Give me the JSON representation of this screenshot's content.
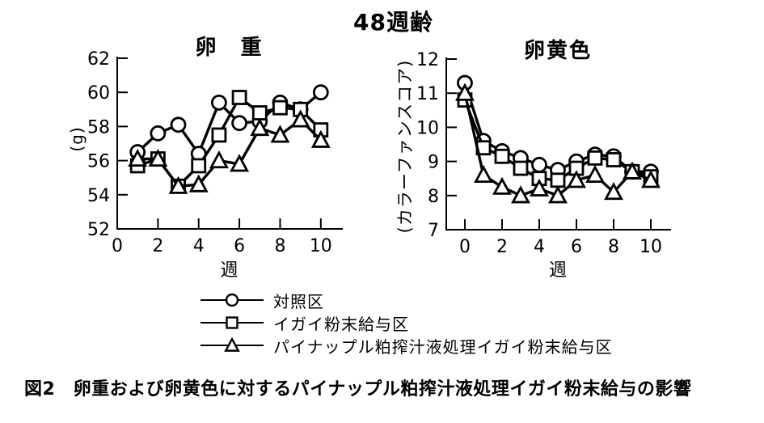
{
  "title": "48週齢",
  "caption": "図2　卵重および卵黄色に対するパイナップル粕搾汁液処理イガイ粉末給与の影響",
  "colors": {
    "ink": "#000000",
    "background": "#ffffff"
  },
  "legend": {
    "position": "bottom",
    "items": [
      {
        "id": "control",
        "marker": "circle",
        "label": "対照区"
      },
      {
        "id": "mussel-powder",
        "marker": "square",
        "label": "イガイ粉末給与区"
      },
      {
        "id": "pineapple-mussel-powder",
        "marker": "triangle",
        "label": "パイナップル粕搾汁液処理イガイ粉末給与区"
      }
    ]
  },
  "chart_data": [
    {
      "type": "line",
      "title": "卵　重",
      "ylabel": "(g)",
      "xlabel": "週",
      "grid": false,
      "x": [
        1,
        2,
        3,
        4,
        5,
        6,
        7,
        8,
        9,
        10
      ],
      "xticks": [
        0,
        2,
        4,
        6,
        8,
        10
      ],
      "yticks": [
        52,
        54,
        56,
        58,
        60,
        62
      ],
      "xlim": [
        0,
        11
      ],
      "ylim": [
        52,
        62
      ],
      "series": [
        {
          "id": "control",
          "name": "対照区",
          "marker": "circle",
          "values": [
            56.5,
            57.6,
            58.1,
            56.4,
            59.4,
            58.2,
            58.3,
            59.4,
            59.0,
            60.0
          ]
        },
        {
          "id": "mussel-powder",
          "name": "イガイ粉末給与区",
          "marker": "square",
          "values": [
            55.7,
            56.1,
            54.5,
            55.7,
            57.5,
            59.7,
            58.8,
            59.1,
            59.0,
            57.8
          ]
        },
        {
          "id": "pineapple-mussel-powder",
          "name": "パイナップル粕搾汁液処理イガイ粉末給与区",
          "marker": "triangle",
          "values": [
            56.1,
            56.1,
            54.5,
            54.6,
            56.0,
            55.8,
            57.9,
            57.5,
            58.4,
            57.2
          ]
        }
      ]
    },
    {
      "type": "line",
      "title": "卵黄色",
      "ylabel": "(カラーファンスコア)",
      "xlabel": "週",
      "grid": false,
      "x": [
        0,
        1,
        2,
        3,
        4,
        5,
        6,
        7,
        8,
        9,
        10
      ],
      "xticks": [
        0,
        2,
        4,
        6,
        8,
        10
      ],
      "yticks": [
        7,
        8,
        9,
        10,
        11,
        12
      ],
      "xlim": [
        -1,
        11
      ],
      "ylim": [
        7,
        12
      ],
      "series": [
        {
          "id": "control",
          "name": "対照区",
          "marker": "circle",
          "values": [
            11.3,
            9.6,
            9.3,
            9.1,
            8.9,
            8.75,
            9.0,
            9.2,
            9.15,
            8.7,
            8.7
          ]
        },
        {
          "id": "mussel-powder",
          "name": "イガイ粉末給与区",
          "marker": "square",
          "values": [
            10.8,
            9.4,
            9.15,
            8.8,
            8.5,
            8.45,
            8.8,
            9.1,
            9.05,
            8.7,
            8.55
          ]
        },
        {
          "id": "pineapple-mussel-powder",
          "name": "パイナップル粕搾汁液処理イガイ粉末給与区",
          "marker": "triangle",
          "values": [
            11.0,
            8.6,
            8.25,
            8.0,
            8.2,
            8.0,
            8.45,
            8.6,
            8.1,
            8.7,
            8.45
          ]
        }
      ]
    }
  ]
}
